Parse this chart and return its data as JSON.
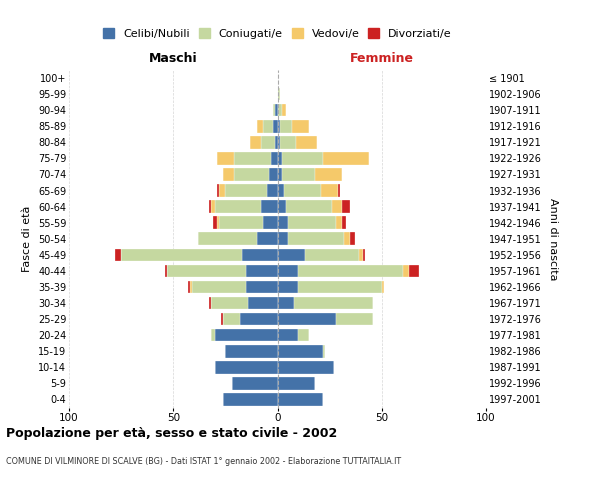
{
  "age_groups": [
    "100+",
    "95-99",
    "90-94",
    "85-89",
    "80-84",
    "75-79",
    "70-74",
    "65-69",
    "60-64",
    "55-59",
    "50-54",
    "45-49",
    "40-44",
    "35-39",
    "30-34",
    "25-29",
    "20-24",
    "15-19",
    "10-14",
    "5-9",
    "0-4"
  ],
  "birth_years": [
    "≤ 1901",
    "1902-1906",
    "1907-1911",
    "1912-1916",
    "1917-1921",
    "1922-1926",
    "1927-1931",
    "1932-1936",
    "1937-1941",
    "1942-1946",
    "1947-1951",
    "1952-1956",
    "1957-1961",
    "1962-1966",
    "1967-1971",
    "1972-1976",
    "1977-1981",
    "1982-1986",
    "1987-1991",
    "1992-1996",
    "1997-2001"
  ],
  "colors": {
    "celibi": "#4472a8",
    "coniugati": "#c5d8a0",
    "vedovi": "#f5c96a",
    "divorziati": "#cc2222"
  },
  "males": {
    "celibi": [
      0,
      0,
      1,
      2,
      1,
      3,
      4,
      5,
      8,
      7,
      10,
      17,
      15,
      15,
      14,
      18,
      30,
      25,
      30,
      22,
      26
    ],
    "coniugati": [
      0,
      0,
      1,
      5,
      7,
      18,
      17,
      20,
      22,
      21,
      28,
      58,
      38,
      26,
      18,
      8,
      2,
      0,
      0,
      0,
      0
    ],
    "vedovi": [
      0,
      0,
      0,
      3,
      5,
      8,
      5,
      3,
      2,
      1,
      0,
      0,
      0,
      1,
      0,
      0,
      0,
      0,
      0,
      0,
      0
    ],
    "divorziati": [
      0,
      0,
      0,
      0,
      0,
      0,
      0,
      1,
      1,
      2,
      0,
      3,
      1,
      1,
      1,
      1,
      0,
      0,
      0,
      0,
      0
    ]
  },
  "females": {
    "celibi": [
      0,
      0,
      0,
      1,
      1,
      2,
      2,
      3,
      4,
      5,
      5,
      13,
      10,
      10,
      8,
      28,
      10,
      22,
      27,
      18,
      22
    ],
    "coniugati": [
      0,
      1,
      2,
      6,
      8,
      20,
      16,
      18,
      22,
      23,
      27,
      26,
      50,
      40,
      38,
      18,
      5,
      1,
      0,
      0,
      0
    ],
    "vedovi": [
      0,
      0,
      2,
      8,
      10,
      22,
      13,
      8,
      5,
      3,
      3,
      2,
      3,
      1,
      0,
      0,
      0,
      0,
      0,
      0,
      0
    ],
    "divorziati": [
      0,
      0,
      0,
      0,
      0,
      0,
      0,
      1,
      4,
      2,
      2,
      1,
      5,
      0,
      0,
      0,
      0,
      0,
      0,
      0,
      0
    ]
  },
  "title": "Popolazione per età, sesso e stato civile - 2002",
  "subtitle": "COMUNE DI VILMINORE DI SCALVE (BG) - Dati ISTAT 1° gennaio 2002 - Elaborazione TUTTAITALIA.IT",
  "xlabel_left": "Maschi",
  "xlabel_right": "Femmine",
  "ylabel_left": "Fasce di età",
  "ylabel_right": "Anni di nascita",
  "legend_labels": [
    "Celibi/Nubili",
    "Coniugati/e",
    "Vedovi/e",
    "Divorziati/e"
  ],
  "xlim": 100,
  "background_color": "#ffffff",
  "grid_color": "#cccccc"
}
